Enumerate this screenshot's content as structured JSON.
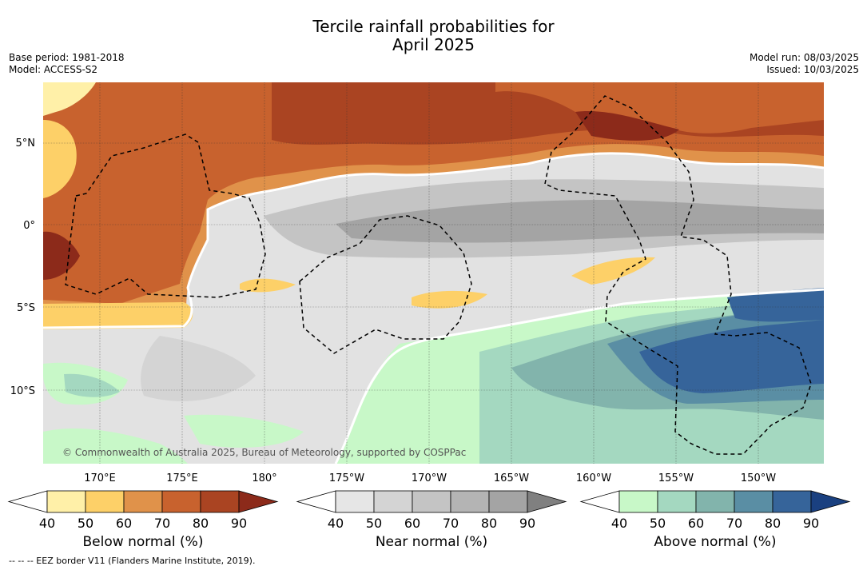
{
  "title_line1": "Tercile rainfall probabilities for",
  "title_line2": "April 2025",
  "meta_left": {
    "base_period": "Base period: 1981-2018",
    "model": "Model: ACCESS-S2"
  },
  "meta_right": {
    "model_run": "Model run: 08/03/2025",
    "issued": "Issued: 10/03/2025"
  },
  "map": {
    "lat_labels": [
      "5°N",
      "0°",
      "5°S",
      "10°S"
    ],
    "lon_labels": [
      "170°E",
      "175°E",
      "180°",
      "175°W",
      "170°W",
      "165°W",
      "160°W",
      "155°W",
      "150°W"
    ],
    "copyright": "© Commonwealth of Australia 2025, Bureau of Meteorology, supported by COSPPac"
  },
  "colorbars": [
    {
      "label": "Below normal (%)",
      "ticks": [
        "40",
        "50",
        "60",
        "70",
        "80",
        "90"
      ],
      "colors": [
        "#ffffff",
        "#fff0a8",
        "#fdd068",
        "#e0924a",
        "#c8622e",
        "#aa4422",
        "#8c2a1a"
      ]
    },
    {
      "label": "Near normal (%)",
      "ticks": [
        "40",
        "50",
        "60",
        "70",
        "80",
        "90"
      ],
      "colors": [
        "#ffffff",
        "#e6e6e6",
        "#d4d4d4",
        "#c4c4c4",
        "#b4b4b4",
        "#a4a4a4",
        "#808080"
      ]
    },
    {
      "label": "Above normal (%)",
      "ticks": [
        "40",
        "50",
        "60",
        "70",
        "80",
        "90"
      ],
      "colors": [
        "#ffffff",
        "#c8f8c8",
        "#a4d8c0",
        "#82b4ac",
        "#5a8ea4",
        "#36649a",
        "#1a4080"
      ]
    }
  ],
  "footer": "--  --  -- EEZ border V11 (Flanders Marine Institute, 2019)."
}
